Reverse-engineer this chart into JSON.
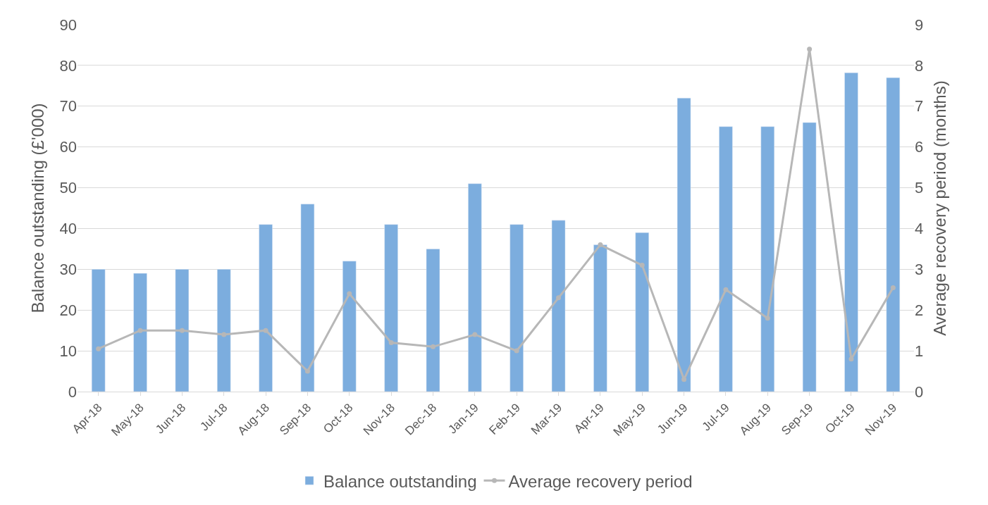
{
  "chart_data": {
    "type": "bar",
    "ylabel": "Balance outstanding (£'000)",
    "y2label": "Average recovery period (months)",
    "categories": [
      "Apr-18",
      "May-18",
      "Jun-18",
      "Jul-18",
      "Aug-18",
      "Sep-18",
      "Oct-18",
      "Nov-18",
      "Dec-18",
      "Jan-19",
      "Feb-19",
      "Mar-19",
      "Apr-19",
      "May-19",
      "Jun-19",
      "Jul-19",
      "Aug-19",
      "Sep-19",
      "Oct-19",
      "Nov-19"
    ],
    "series": [
      {
        "name": "Balance outstanding",
        "color": "#7cadde",
        "values": [
          30,
          29,
          30,
          30,
          41,
          46,
          32,
          41,
          35,
          51,
          41,
          42,
          36,
          39,
          72,
          65,
          65,
          66,
          78.2,
          77
        ]
      },
      {
        "name": "Average recovery period",
        "type": "line",
        "axis": "y2",
        "color": "#b7b7b7",
        "marker": "circle",
        "values": [
          1.05,
          1.5,
          1.5,
          1.4,
          1.5,
          0.5,
          2.4,
          1.2,
          1.1,
          1.4,
          1.0,
          2.3,
          3.6,
          3.1,
          0.3,
          2.5,
          1.8,
          8.4,
          0.8,
          2.55
        ]
      }
    ],
    "ylim": [
      0,
      90
    ],
    "yticks": [
      0,
      10,
      20,
      30,
      40,
      50,
      60,
      70,
      80,
      90
    ],
    "y2lim": [
      0,
      9
    ],
    "y2ticks": [
      0,
      1,
      2,
      3,
      4,
      5,
      6,
      7,
      8,
      9
    ],
    "grid": "y",
    "legend": "bottom"
  }
}
